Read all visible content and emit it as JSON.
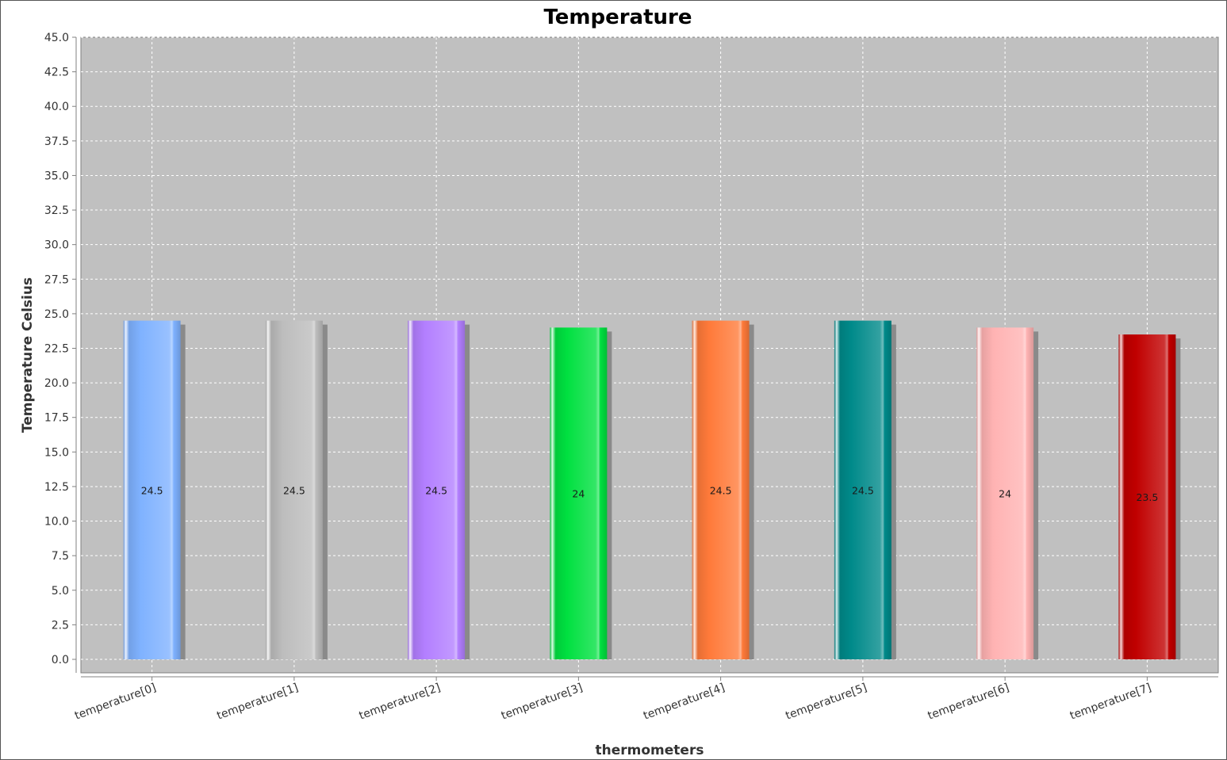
{
  "chart_data": {
    "type": "bar",
    "title": "Temperature",
    "xlabel": "thermometers",
    "ylabel": "Temperature Celsius",
    "categories": [
      "temperature[0]",
      "temperature[1]",
      "temperature[2]",
      "temperature[3]",
      "temperature[4]",
      "temperature[5]",
      "temperature[6]",
      "temperature[7]"
    ],
    "values": [
      24.5,
      24.5,
      24.5,
      24,
      24.5,
      24.5,
      24,
      23.5
    ],
    "value_labels": [
      "24.5",
      "24.5",
      "24.5",
      "24",
      "24.5",
      "24.5",
      "24",
      "23.5"
    ],
    "colors": [
      "#7fb2ff",
      "#bdbdbd",
      "#b37fff",
      "#00e040",
      "#ff7a3a",
      "#008a8a",
      "#ffb3b3",
      "#c00000"
    ],
    "ylim": [
      0,
      45
    ],
    "yticks": [
      "0.0",
      "2.5",
      "5.0",
      "7.5",
      "10.0",
      "12.5",
      "15.0",
      "17.5",
      "20.0",
      "22.5",
      "25.0",
      "27.5",
      "30.0",
      "32.5",
      "35.0",
      "37.5",
      "40.0",
      "42.5",
      "45.0"
    ],
    "grid": true,
    "legend": "none",
    "plot_background": "#c0c0c0"
  }
}
